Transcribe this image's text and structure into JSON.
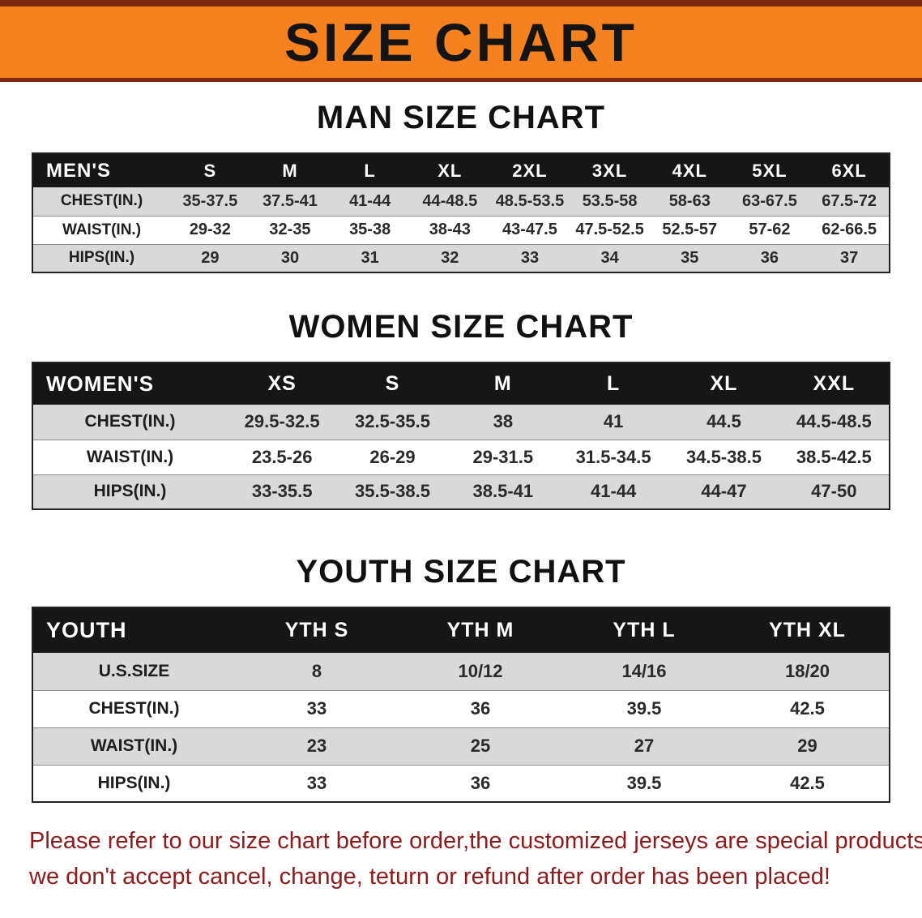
{
  "banner": {
    "title": "SIZE CHART"
  },
  "sections": {
    "men": {
      "heading": "MAN SIZE CHART",
      "table": {
        "header": [
          "MEN'S",
          "S",
          "M",
          "L",
          "XL",
          "2XL",
          "3XL",
          "4XL",
          "5XL",
          "6XL"
        ],
        "rows": [
          [
            "CHEST(IN.)",
            "35-37.5",
            "37.5-41",
            "41-44",
            "44-48.5",
            "48.5-53.5",
            "53.5-58",
            "58-63",
            "63-67.5",
            "67.5-72"
          ],
          [
            "WAIST(IN.)",
            "29-32",
            "32-35",
            "35-38",
            "38-43",
            "43-47.5",
            "47.5-52.5",
            "52.5-57",
            "57-62",
            "62-66.5"
          ],
          [
            "HIPS(IN.)",
            "29",
            "30",
            "31",
            "32",
            "33",
            "34",
            "35",
            "36",
            "37"
          ]
        ]
      }
    },
    "women": {
      "heading": "WOMEN SIZE CHART",
      "table": {
        "header": [
          "WOMEN'S",
          "XS",
          "S",
          "M",
          "L",
          "XL",
          "XXL"
        ],
        "rows": [
          [
            "CHEST(IN.)",
            "29.5-32.5",
            "32.5-35.5",
            "38",
            "41",
            "44.5",
            "44.5-48.5"
          ],
          [
            "WAIST(IN.)",
            "23.5-26",
            "26-29",
            "29-31.5",
            "31.5-34.5",
            "34.5-38.5",
            "38.5-42.5"
          ],
          [
            "HIPS(IN.)",
            "33-35.5",
            "35.5-38.5",
            "38.5-41",
            "41-44",
            "44-47",
            "47-50"
          ]
        ]
      }
    },
    "youth": {
      "heading": "YOUTH SIZE CHART",
      "table": {
        "header": [
          "YOUTH",
          "YTH S",
          "YTH M",
          "YTH L",
          "YTH XL"
        ],
        "rows": [
          [
            "U.S.SIZE",
            "8",
            "10/12",
            "14/16",
            "18/20"
          ],
          [
            "CHEST(IN.)",
            "33",
            "36",
            "39.5",
            "42.5"
          ],
          [
            "WAIST(IN.)",
            "23",
            "25",
            "27",
            "29"
          ],
          [
            "HIPS(IN.)",
            "33",
            "36",
            "39.5",
            "42.5"
          ]
        ]
      }
    }
  },
  "footer": {
    "line1": "Please refer to our size chart before order,the customized jerseys are special products,",
    "line2": "we don't accept cancel, change, teturn or refund after order has been placed!"
  },
  "colors": {
    "banner_bg": "#f5821f",
    "banner_border": "#7e2a12",
    "banner_text": "#141414",
    "table_header_bg": "#161616",
    "table_header_text": "#ffffff",
    "row_alt_bg": "#d9d9d9",
    "row_bg": "#ffffff",
    "footer_text": "#8e1b1b"
  }
}
